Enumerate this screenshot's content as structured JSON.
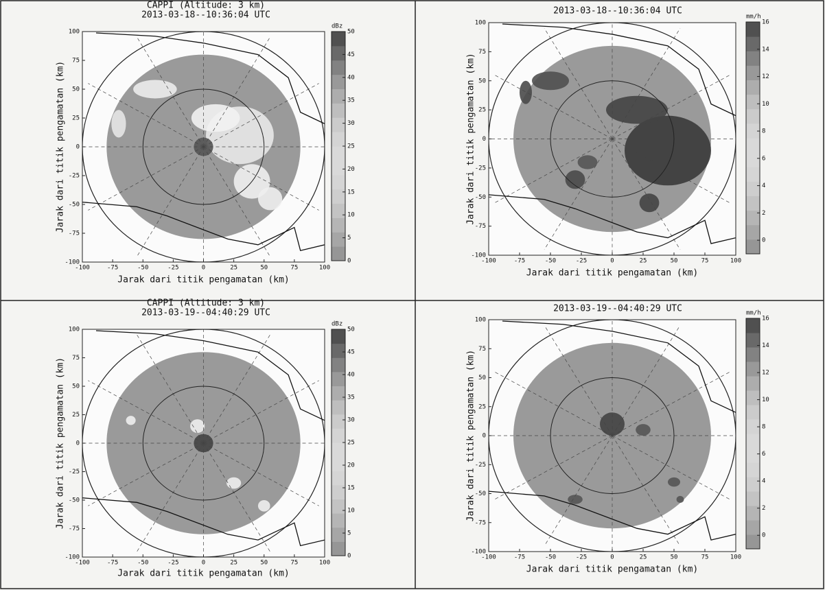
{
  "chart_data": [
    {
      "type": "radar-map",
      "title": "CAPPI (Altitude: 3 km)",
      "subtitle": "2013-03-18--10:36:04 UTC",
      "x_label": "Jarak dari titik pengamatan (km)",
      "y_label": "Jarak dari titik pengamatan (km)",
      "xlim": [
        -100,
        100
      ],
      "ylim": [
        -100,
        100
      ],
      "xticks": [
        -100,
        -75,
        -50,
        -25,
        0,
        25,
        50,
        75,
        100
      ],
      "yticks": [
        -100,
        -75,
        -50,
        -25,
        0,
        25,
        50,
        75,
        100
      ],
      "colorbar_label": "dBz",
      "colorbar_lim": [
        0,
        50
      ],
      "colorbar_ticks": [
        0,
        5,
        10,
        15,
        20,
        25,
        30,
        35,
        40,
        45,
        50
      ]
    },
    {
      "type": "radar-map",
      "title": "2013-03-18--10:36:04 UTC",
      "x_label": "Jarak dari titik pengamatan (km)",
      "y_label": "Jarak dari titik pengamatan (km)",
      "xlim": [
        -100,
        100
      ],
      "ylim": [
        -100,
        100
      ],
      "xticks": [
        -100,
        -75,
        -50,
        -25,
        0,
        25,
        50,
        75,
        100
      ],
      "yticks": [
        -100,
        -75,
        -50,
        -25,
        0,
        25,
        50,
        75,
        100
      ],
      "colorbar_label": "mm/h",
      "colorbar_lim": [
        -1,
        16
      ],
      "colorbar_ticks": [
        0,
        2,
        4,
        6,
        8,
        10,
        12,
        14,
        16
      ]
    },
    {
      "type": "radar-map",
      "title": "CAPPI (Altitude: 3 km)",
      "subtitle": "2013-03-19--04:40:29 UTC",
      "x_label": "Jarak dari titik pengamatan (km)",
      "y_label": "Jarak dari titik pengamatan (km)",
      "xlim": [
        -100,
        100
      ],
      "ylim": [
        -100,
        100
      ],
      "xticks": [
        -100,
        -75,
        -50,
        -25,
        0,
        25,
        50,
        75,
        100
      ],
      "yticks": [
        -100,
        -75,
        -50,
        -25,
        0,
        25,
        50,
        75,
        100
      ],
      "colorbar_label": "dBz",
      "colorbar_lim": [
        0,
        50
      ],
      "colorbar_ticks": [
        0,
        5,
        10,
        15,
        20,
        25,
        30,
        35,
        40,
        45,
        50
      ]
    },
    {
      "type": "radar-map",
      "title": "2013-03-19--04:40:29 UTC",
      "x_label": "Jarak dari titik pengamatan (km)",
      "y_label": "Jarak dari titik pengamatan (km)",
      "xlim": [
        -100,
        100
      ],
      "ylim": [
        -100,
        100
      ],
      "xticks": [
        -100,
        -75,
        -50,
        -25,
        0,
        25,
        50,
        75,
        100
      ],
      "yticks": [
        -100,
        -75,
        -50,
        -25,
        0,
        25,
        50,
        75,
        100
      ],
      "colorbar_label": "mm/h",
      "colorbar_lim": [
        -1,
        16
      ],
      "colorbar_ticks": [
        0,
        2,
        4,
        6,
        8,
        10,
        12,
        14,
        16
      ]
    }
  ]
}
